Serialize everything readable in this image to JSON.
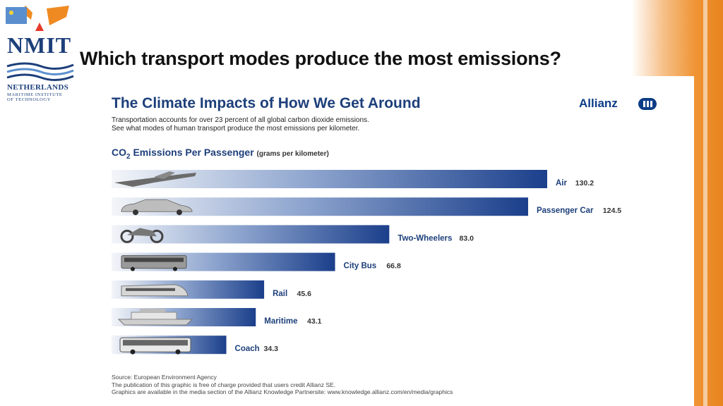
{
  "slide": {
    "title": "Which transport modes produce the most emissions?"
  },
  "logo": {
    "name": "NMIT",
    "line1": "Netherlands",
    "line2": "Maritime Institute",
    "line3": "of Technology"
  },
  "infographic": {
    "title": "The Climate Impacts of How We Get Around",
    "brand": "Allianz",
    "intro_line1": "Transportation accounts for over 23 percent of all global carbon dioxide emissions.",
    "intro_line2": "See what modes of human transport produce the most emissions per kilometer.",
    "subhead_main": "CO",
    "subhead_sub": "2",
    "subhead_rest": " Emissions Per Passenger",
    "subhead_unit": "(grams per kilometer)",
    "footer_line1": "Source: European Environment Agency",
    "footer_line2": "The publication of this graphic is free of charge provided that users credit Allianz SE.",
    "footer_line3": "Graphics are available in the media section of the Allianz Knowledge Partnersite: www.knowledge.allianz.com/en/media/graphics"
  },
  "chart_data": {
    "type": "bar",
    "orientation": "horizontal",
    "categories": [
      "Air",
      "Passenger Car",
      "Two-Wheelers",
      "City Bus",
      "Rail",
      "Maritime",
      "Coach"
    ],
    "values": [
      130.2,
      124.5,
      83.0,
      66.8,
      45.6,
      43.1,
      34.3
    ],
    "value_labels": [
      "130.2",
      "124.5",
      "83.0",
      "66.8",
      "45.6",
      "43.1",
      "34.3"
    ],
    "icons": [
      "airplane-icon",
      "car-icon",
      "motorcycle-icon",
      "bus-icon",
      "train-icon",
      "ship-icon",
      "coach-icon"
    ],
    "xlim": [
      0,
      130.2
    ],
    "grid": false,
    "legend": "none",
    "colors": {
      "bar_start": "#f3f5f9",
      "bar_end": "#1b3f8b",
      "label": "#1d3f7a",
      "icon": "#6b6b6b"
    }
  }
}
